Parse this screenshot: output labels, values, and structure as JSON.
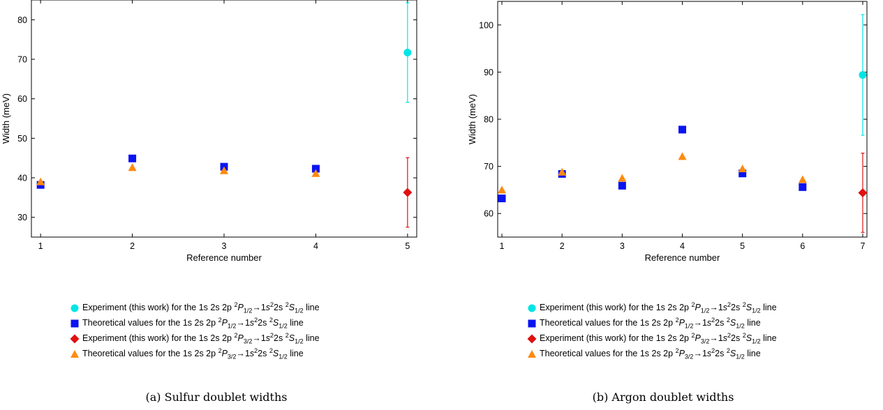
{
  "chart_data": [
    {
      "type": "scatter",
      "caption": "(a) Sulfur doublet widths",
      "xlabel": "Reference number",
      "ylabel": "Width (meV)",
      "xlim": [
        0.9,
        5.1
      ],
      "ylim": [
        25,
        85
      ],
      "xticks": [
        1,
        2,
        3,
        4,
        5
      ],
      "yticks": [
        30,
        40,
        50,
        60,
        70,
        80
      ],
      "series": [
        {
          "marker": "circle",
          "color": "#00e5e5",
          "points": [
            {
              "x": 5,
              "y": 71.7,
              "err": 12.6
            }
          ]
        },
        {
          "marker": "square",
          "color": "#0a14f0",
          "points": [
            {
              "x": 1,
              "y": 38.2
            },
            {
              "x": 2,
              "y": 44.9
            },
            {
              "x": 3,
              "y": 42.8
            },
            {
              "x": 4,
              "y": 42.3
            }
          ]
        },
        {
          "marker": "diamond",
          "color": "#e01010",
          "points": [
            {
              "x": 5,
              "y": 36.3,
              "err": 8.8
            }
          ]
        },
        {
          "marker": "triangle",
          "color": "#ff8a10",
          "points": [
            {
              "x": 1,
              "y": 39.0
            },
            {
              "x": 2,
              "y": 42.6
            },
            {
              "x": 3,
              "y": 41.8
            },
            {
              "x": 4,
              "y": 41.1
            }
          ]
        }
      ]
    },
    {
      "type": "scatter",
      "caption": "(b) Argon doublet widths",
      "xlabel": "Reference number",
      "ylabel": "Width (meV)",
      "xlim": [
        0.93,
        7.07
      ],
      "ylim": [
        55,
        105
      ],
      "xticks": [
        1,
        2,
        3,
        4,
        5,
        6,
        7
      ],
      "yticks": [
        60,
        70,
        80,
        90,
        100
      ],
      "series": [
        {
          "marker": "circle",
          "color": "#00e5e5",
          "points": [
            {
              "x": 7,
              "y": 89.4,
              "err": 12.8
            }
          ]
        },
        {
          "marker": "square",
          "color": "#0a14f0",
          "points": [
            {
              "x": 1,
              "y": 63.2
            },
            {
              "x": 2,
              "y": 68.4
            },
            {
              "x": 3,
              "y": 65.9
            },
            {
              "x": 4,
              "y": 77.8
            },
            {
              "x": 5,
              "y": 68.5
            },
            {
              "x": 6,
              "y": 65.6
            }
          ]
        },
        {
          "marker": "diamond",
          "color": "#e01010",
          "points": [
            {
              "x": 7,
              "y": 64.4,
              "err": 8.4
            }
          ]
        },
        {
          "marker": "triangle",
          "color": "#ff8a10",
          "points": [
            {
              "x": 1,
              "y": 65.0
            },
            {
              "x": 2,
              "y": 68.8
            },
            {
              "x": 3,
              "y": 67.5
            },
            {
              "x": 4,
              "y": 72.1
            },
            {
              "x": 5,
              "y": 69.5
            },
            {
              "x": 6,
              "y": 67.2
            }
          ]
        }
      ]
    }
  ],
  "legend": [
    {
      "marker": "circle",
      "color": "#00e5e5",
      "prefix": "Experiment (this work) for the 1s 2s 2p ",
      "sup1": "2",
      "sym1": "P",
      "sub1": "1/2",
      "mid": "→1",
      "sym2": "s",
      "sup2": "2",
      "mid2": "2s ",
      "sup3": "2",
      "sym3": "S",
      "sub3": "1/2",
      "suffix": " line"
    },
    {
      "marker": "square",
      "color": "#0a14f0",
      "prefix": "Theoretical values for the 1s 2s 2p ",
      "sup1": "2",
      "sym1": "P",
      "sub1": "1/2",
      "mid": "→1",
      "sym2": "s",
      "sup2": "2",
      "mid2": "2s ",
      "sup3": "2",
      "sym3": "S",
      "sub3": "1/2",
      "suffix": " line"
    },
    {
      "marker": "diamond",
      "color": "#e01010",
      "prefix": "Experiment (this work) for the 1s 2s 2p ",
      "sup1": "2",
      "sym1": "P",
      "sub1": "3/2",
      "mid": "→1",
      "sym2": "s",
      "sup2": "2",
      "mid2": "2s ",
      "sup3": "2",
      "sym3": "S",
      "sub3": "1/2",
      "suffix": " line"
    },
    {
      "marker": "triangle",
      "color": "#ff8a10",
      "prefix": "Theoretical values for the 1s 2s 2p ",
      "sup1": "2",
      "sym1": "P",
      "sub1": "3/2",
      "mid": "→1",
      "sym2": "s",
      "sup2": "2",
      "mid2": "2s ",
      "sup3": "2",
      "sym3": "S",
      "sub3": "1/2",
      "suffix": " line"
    }
  ]
}
